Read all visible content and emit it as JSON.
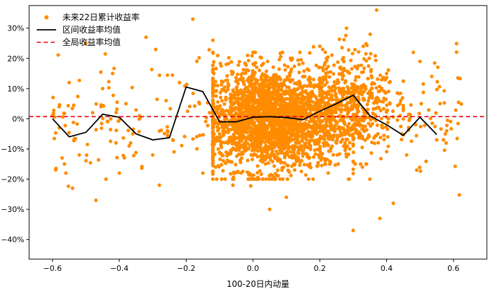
{
  "chart_data": {
    "type": "scatter",
    "title": "",
    "xlabel": "100-20日内动量",
    "ylabel": "",
    "xlim": [
      -0.67,
      0.7
    ],
    "ylim": [
      -0.465,
      0.375
    ],
    "xticks": [
      -0.6,
      -0.4,
      -0.2,
      0.0,
      0.2,
      0.4,
      0.6
    ],
    "xtick_labels": [
      "−0.6",
      "−0.4",
      "−0.2",
      "0.0",
      "0.2",
      "0.4",
      "0.6"
    ],
    "yticks": [
      -0.4,
      -0.3,
      -0.2,
      -0.1,
      0.0,
      0.1,
      0.2,
      0.3
    ],
    "ytick_labels": [
      "−40%",
      "−30%",
      "−20%",
      "−10%",
      "0%",
      "10%",
      "20%",
      "30%"
    ],
    "grid": false,
    "legend_position": "top-left",
    "series": [
      {
        "name": "未来22日累计收益率",
        "kind": "scatter",
        "color": "#ff8c00",
        "points": [
          [
            -0.6,
            0.01
          ],
          [
            -0.58,
            0.04
          ],
          [
            -0.58,
            -0.03
          ],
          [
            -0.55,
            0.12
          ],
          [
            -0.56,
            -0.18
          ],
          [
            -0.54,
            -0.23
          ],
          [
            -0.52,
            -0.12
          ],
          [
            -0.5,
            0.25
          ],
          [
            -0.48,
            0.02
          ],
          [
            -0.47,
            -0.27
          ],
          [
            -0.45,
            0.1
          ],
          [
            -0.44,
            -0.2
          ],
          [
            -0.42,
            0.15
          ],
          [
            -0.41,
            -0.08
          ],
          [
            -0.4,
            -0.18
          ],
          [
            -0.38,
            0.05
          ],
          [
            -0.36,
            -0.05
          ],
          [
            -0.34,
            0.01
          ],
          [
            -0.32,
            0.27
          ],
          [
            -0.3,
            -0.12
          ],
          [
            -0.28,
            -0.22
          ],
          [
            -0.26,
            0.06
          ],
          [
            -0.24,
            -0.07
          ],
          [
            -0.22,
            0.12
          ],
          [
            -0.18,
            0.33
          ],
          [
            -0.16,
            0.05
          ],
          [
            -0.15,
            -0.18
          ],
          [
            -0.13,
            0.02
          ],
          [
            -0.12,
            0.26
          ],
          [
            -0.1,
            -0.06
          ],
          [
            -0.08,
            0.18
          ],
          [
            -0.06,
            -0.22
          ],
          [
            0.05,
            -0.3
          ],
          [
            0.1,
            -0.26
          ],
          [
            0.14,
            0.12
          ],
          [
            0.18,
            -0.2
          ],
          [
            0.22,
            0.2
          ],
          [
            0.25,
            -0.08
          ],
          [
            0.28,
            0.3
          ],
          [
            0.3,
            -0.37
          ],
          [
            0.33,
            0.24
          ],
          [
            0.35,
            -0.2
          ],
          [
            0.37,
            0.36
          ],
          [
            0.38,
            -0.33
          ],
          [
            0.4,
            0.15
          ],
          [
            0.42,
            -0.28
          ],
          [
            0.44,
            0.05
          ],
          [
            0.46,
            -0.12
          ],
          [
            0.48,
            0.22
          ],
          [
            0.49,
            -0.17
          ],
          [
            0.5,
            0.19
          ],
          [
            0.55,
            -0.07
          ],
          [
            0.57,
            -0.07
          ],
          [
            0.58,
            -0.04
          ]
        ],
        "dense_clusters": [
          {
            "x": [
              -0.12,
              0.3
            ],
            "y": [
              -0.2,
              0.22
            ],
            "count": 2400,
            "center": [
              0.05,
              0.0
            ]
          },
          {
            "x": [
              0.2,
              0.45
            ],
            "y": [
              -0.15,
              0.28
            ],
            "count": 450,
            "center": [
              0.3,
              0.05
            ]
          }
        ]
      },
      {
        "name": "区间收益率均值",
        "kind": "line",
        "color": "#000000",
        "x": [
          -0.6,
          -0.55,
          -0.5,
          -0.45,
          -0.4,
          -0.35,
          -0.3,
          -0.25,
          -0.2,
          -0.15,
          -0.1,
          -0.05,
          0.0,
          0.05,
          0.1,
          0.15,
          0.2,
          0.25,
          0.3,
          0.35,
          0.4,
          0.45,
          0.5,
          0.55
        ],
        "y": [
          0.0,
          -0.06,
          -0.045,
          0.015,
          0.005,
          -0.05,
          -0.07,
          -0.063,
          0.105,
          0.09,
          -0.01,
          -0.01,
          0.005,
          0.007,
          0.004,
          -0.003,
          0.025,
          0.05,
          0.078,
          0.01,
          -0.02,
          -0.055,
          0.005,
          -0.052
        ]
      },
      {
        "name": "全局收益率均值",
        "kind": "hline",
        "color": "#e8000b",
        "y": 0.007
      }
    ]
  }
}
